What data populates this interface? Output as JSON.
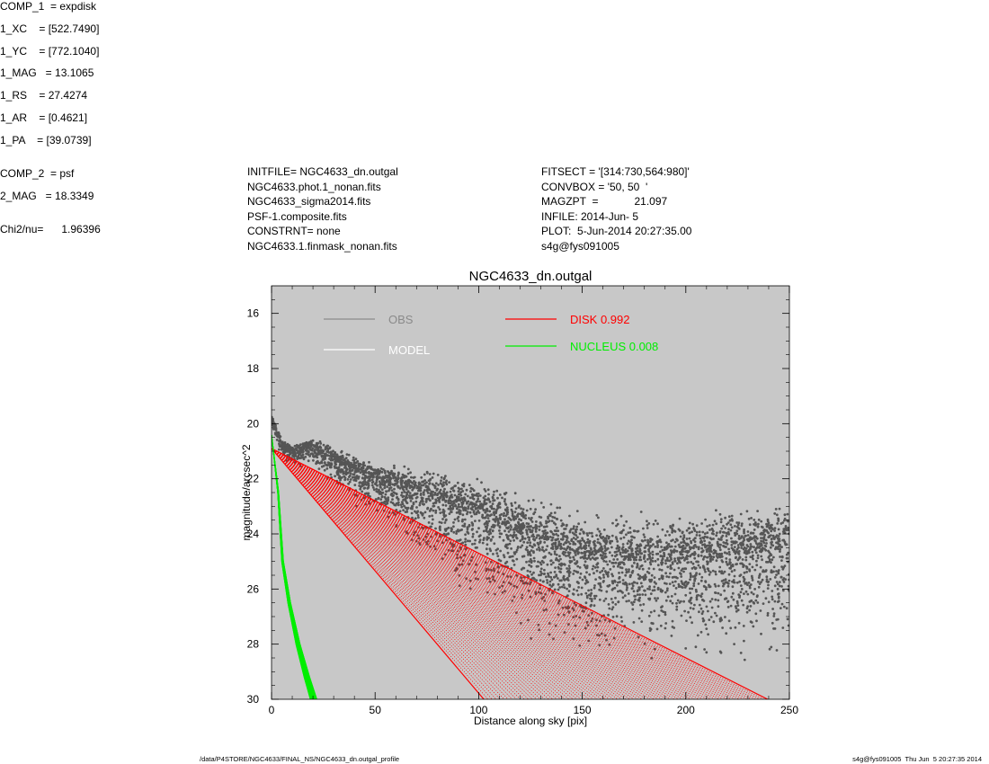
{
  "header_left": [
    "INITFILE= NGC4633_dn.outgal",
    "NGC4633.phot.1_nonan.fits",
    "NGC4633_sigma2014.fits",
    "PSF-1.composite.fits",
    "CONSTRNT= none",
    "NGC4633.1.finmask_nonan.fits"
  ],
  "header_mid": [
    "FITSECT = '[314:730,564:980]'",
    "CONVBOX = '50, 50  '",
    "MAGZPT  =            21.097",
    "INFILE: 2014-Jun- 5",
    "PLOT:  5-Jun-2014 20:27:35.00",
    "s4g@fys091005"
  ],
  "params": {
    "comp1": "COMP_1  = expdisk",
    "xc": "1_XC    = [522.7490]",
    "yc": "1_YC    = [772.1040]",
    "mag1": "1_MAG   = 13.1065",
    "rs": "1_RS    = 27.4274",
    "ar": "1_AR    = [0.4621]",
    "pa": "1_PA    = [39.0739]",
    "comp2": "COMP_2  = psf",
    "mag2": "2_MAG   = 18.3349",
    "chi2": "Chi2/nu=      1.96396"
  },
  "footer": {
    "path": "/data/P4STORE/NGC4633/FINAL_NS/NGC4633_dn.outgal_profile",
    "stamp": "s4g@fys091005  Thu Jun  5 20:27:35 2014"
  },
  "colors": {
    "plot_bg": "#c8c8c8",
    "obs": "#555555",
    "obs_legend": "#8a8a8a",
    "model": "#ffffff",
    "disk": "#ff0000",
    "nucleus": "#00ee00"
  },
  "chart_data": {
    "type": "scatter",
    "title": "NGC4633_dn.outgal",
    "xlabel": "Distance along sky [pix]",
    "ylabel": "magnitude/arcsec^2",
    "xlim": [
      0,
      250
    ],
    "ylim": [
      30,
      15
    ],
    "y_inverted": true,
    "xticks": [
      0,
      50,
      100,
      150,
      200,
      250
    ],
    "yticks": [
      16,
      18,
      20,
      22,
      24,
      26,
      28,
      30
    ],
    "legend": [
      {
        "label": "OBS",
        "color": "#8a8a8a"
      },
      {
        "label": "MODEL",
        "color": "#ffffff"
      },
      {
        "label": "DISK  0.992",
        "color": "#ff0000"
      },
      {
        "label": "NUCLEUS  0.008",
        "color": "#00ee00"
      }
    ],
    "series": [
      {
        "name": "OBS",
        "color": "#555555",
        "description_points": [
          [
            0,
            19.8
          ],
          [
            5,
            20.8
          ],
          [
            10,
            21.0
          ],
          [
            20,
            20.8
          ],
          [
            30,
            21.3
          ],
          [
            50,
            22.0
          ],
          [
            70,
            22.5
          ],
          [
            100,
            23.3
          ],
          [
            120,
            24.0
          ],
          [
            150,
            24.9
          ],
          [
            200,
            25.0
          ],
          [
            250,
            24.5
          ]
        ],
        "spread": [
          [
            0,
            0.3
          ],
          [
            50,
            1.2
          ],
          [
            100,
            2.8
          ],
          [
            150,
            3.0
          ],
          [
            200,
            3.2
          ],
          [
            250,
            3.5
          ]
        ]
      },
      {
        "name": "DISK",
        "color": "#ff0000",
        "fan_start": [
          0,
          20.9
        ],
        "fan_end_upper": [
          250,
          30.4
        ],
        "fan_end_lower": [
          107,
          30.4
        ]
      },
      {
        "name": "NUCLEUS",
        "color": "#00ee00",
        "points": [
          [
            0,
            20.4
          ],
          [
            3,
            22.5
          ],
          [
            5,
            25.0
          ],
          [
            8,
            26.5
          ],
          [
            12,
            28.0
          ],
          [
            16,
            29.2
          ],
          [
            19,
            30.0
          ]
        ]
      }
    ]
  }
}
